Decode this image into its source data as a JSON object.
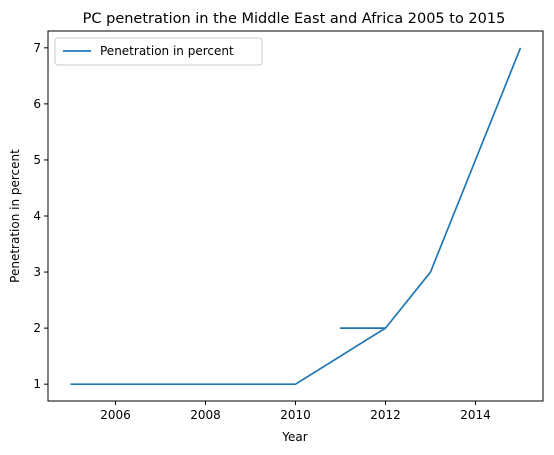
{
  "chart_data": {
    "type": "line",
    "title": "PC penetration in the Middle East and Africa 2005 to 2015",
    "xlabel": "Year",
    "ylabel": "Penetration in percent",
    "xlim": [
      2004.5,
      2015.5
    ],
    "ylim": [
      0.7,
      7.3
    ],
    "xticks": [
      2006,
      2008,
      2010,
      2012,
      2014
    ],
    "yticks": [
      1,
      2,
      3,
      4,
      5,
      6,
      7
    ],
    "grid": false,
    "legend_position": "upper-left",
    "series": [
      {
        "name": "Penetration in percent",
        "color": "#1f77b4",
        "x": [
          2005,
          2006,
          2007,
          2008,
          2009,
          2010,
          2012,
          2011,
          2012,
          2013,
          2014,
          2015
        ],
        "y": [
          1,
          1,
          1,
          1,
          1,
          1,
          2,
          2,
          2,
          3,
          5,
          7
        ]
      }
    ]
  }
}
